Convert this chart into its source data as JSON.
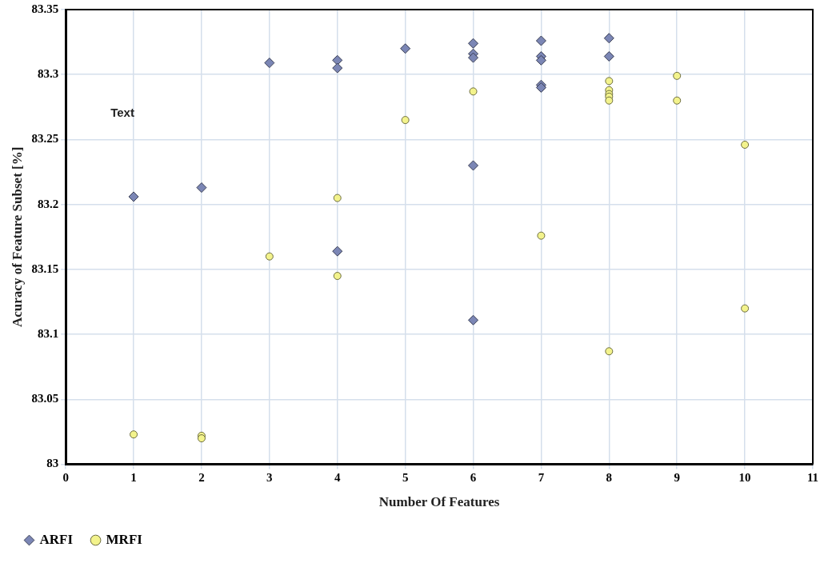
{
  "chart_data": {
    "type": "scatter",
    "xlabel": "Number Of Features",
    "ylabel": "Acuracy of Feature Subset [%]",
    "annotations": [
      "Text"
    ],
    "xlim": [
      0,
      11
    ],
    "xticks": [
      0,
      1,
      2,
      3,
      4,
      5,
      6,
      7,
      8,
      9,
      10,
      11
    ],
    "ylim": [
      83,
      83.35
    ],
    "yticks": [
      83,
      83.05,
      83.1,
      83.15,
      83.2,
      83.25,
      83.3,
      83.35
    ],
    "grid": true,
    "legend": "bottom left",
    "series": [
      {
        "name": "ARFI",
        "color": "#7b86b5",
        "marker": "diamond",
        "x": [
          1,
          2,
          3,
          4,
          4,
          4,
          5,
          6,
          6,
          6,
          6,
          6,
          7,
          7,
          7,
          7,
          7,
          8,
          8
        ],
        "values": [
          83.206,
          83.213,
          83.309,
          83.311,
          83.305,
          83.164,
          83.32,
          83.324,
          83.316,
          83.313,
          83.23,
          83.111,
          83.326,
          83.314,
          83.311,
          83.292,
          83.29,
          83.328,
          83.314
        ]
      },
      {
        "name": "MRFI",
        "color": "#f3f38c",
        "marker": "circle",
        "x": [
          1,
          2,
          2,
          3,
          4,
          4,
          5,
          6,
          7,
          8,
          8,
          8,
          8,
          8,
          8,
          9,
          9,
          10,
          10
        ],
        "values": [
          83.023,
          83.022,
          83.02,
          83.16,
          83.205,
          83.145,
          83.265,
          83.287,
          83.176,
          83.295,
          83.288,
          83.285,
          83.283,
          83.28,
          83.087,
          83.299,
          83.28,
          83.246,
          83.12
        ]
      }
    ]
  }
}
